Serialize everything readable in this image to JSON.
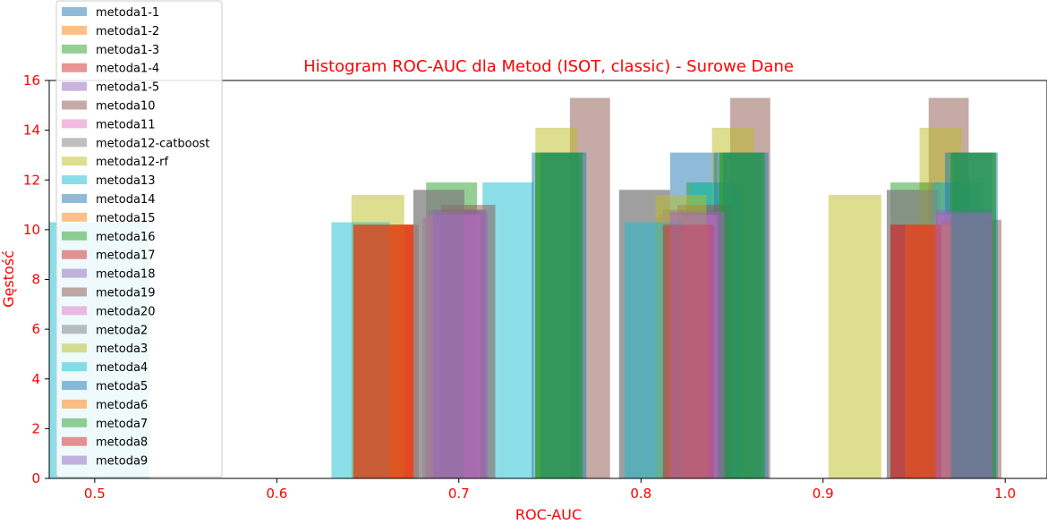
{
  "chart_data": {
    "type": "bar",
    "title": "Histogram ROC-AUC dla Metod (ISOT, classic) - Surowe Dane",
    "xlabel": "ROC-AUC",
    "ylabel": "Gęstość",
    "xlim": [
      0.475,
      1.023
    ],
    "ylim": [
      0,
      16
    ],
    "xticks": [
      "0.5",
      "0.6",
      "0.7",
      "0.8",
      "0.9",
      "1.0"
    ],
    "yticks": [
      "0",
      "2",
      "4",
      "6",
      "8",
      "10",
      "12",
      "14",
      "16"
    ],
    "grid": false,
    "legend_position": "top-left",
    "series": [
      {
        "name": "metoda1-1",
        "color": "#1f77b4",
        "bars": [
          {
            "x0": 0.816,
            "x1": 0.842,
            "h": 13.1
          },
          {
            "x0": 0.953,
            "x1": 0.977,
            "h": 11.9
          }
        ]
      },
      {
        "name": "metoda1-2",
        "color": "#ff7f0e",
        "bars": [
          {
            "x0": 0.642,
            "x1": 0.675,
            "h": 10.2
          },
          {
            "x0": 0.815,
            "x1": 0.838,
            "h": 10.2
          },
          {
            "x0": 0.945,
            "x1": 0.97,
            "h": 10.2
          }
        ]
      },
      {
        "name": "metoda1-3",
        "color": "#2ca02c",
        "bars": [
          {
            "x0": 0.682,
            "x1": 0.71,
            "h": 11.9
          },
          {
            "x0": 0.825,
            "x1": 0.853,
            "h": 11.9
          },
          {
            "x0": 0.937,
            "x1": 0.965,
            "h": 11.9
          }
        ]
      },
      {
        "name": "metoda1-4",
        "color": "#d62728",
        "bars": [
          {
            "x0": 0.642,
            "x1": 0.678,
            "h": 10.2
          },
          {
            "x0": 0.812,
            "x1": 0.84,
            "h": 10.2
          },
          {
            "x0": 0.937,
            "x1": 0.965,
            "h": 10.2
          }
        ]
      },
      {
        "name": "metoda1-5",
        "color": "#9467bd",
        "bars": [
          {
            "x0": 0.683,
            "x1": 0.713,
            "h": 10.8
          },
          {
            "x0": 0.812,
            "x1": 0.842,
            "h": 10.8
          },
          {
            "x0": 0.962,
            "x1": 0.992,
            "h": 10.8
          }
        ]
      },
      {
        "name": "metoda10",
        "color": "#8c564b",
        "bars": [
          {
            "x0": 0.761,
            "x1": 0.783,
            "h": 15.3
          },
          {
            "x0": 0.849,
            "x1": 0.871,
            "h": 15.3
          },
          {
            "x0": 0.958,
            "x1": 0.98,
            "h": 15.3
          }
        ]
      },
      {
        "name": "metoda11",
        "color": "#e377c2",
        "bars": [
          {
            "x0": 0.68,
            "x1": 0.713,
            "h": 10.5
          },
          {
            "x0": 0.808,
            "x1": 0.84,
            "h": 10.5
          },
          {
            "x0": 0.96,
            "x1": 0.993,
            "h": 10.5
          }
        ]
      },
      {
        "name": "metoda12-catboost",
        "color": "#7f7f7f",
        "bars": [
          {
            "x0": 0.675,
            "x1": 0.703,
            "h": 11.6
          },
          {
            "x0": 0.788,
            "x1": 0.816,
            "h": 11.6
          },
          {
            "x0": 0.935,
            "x1": 0.963,
            "h": 11.6
          }
        ]
      },
      {
        "name": "metoda12-rf",
        "color": "#bcbd22",
        "bars": [
          {
            "x0": 0.742,
            "x1": 0.765,
            "h": 14.1
          },
          {
            "x0": 0.839,
            "x1": 0.862,
            "h": 14.1
          },
          {
            "x0": 0.953,
            "x1": 0.976,
            "h": 14.1
          }
        ]
      },
      {
        "name": "metoda13",
        "color": "#17becf",
        "bars": [
          {
            "x0": 0.713,
            "x1": 0.741,
            "h": 11.9
          },
          {
            "x0": 0.827,
            "x1": 0.855,
            "h": 11.9
          },
          {
            "x0": 0.96,
            "x1": 0.988,
            "h": 11.9
          }
        ]
      },
      {
        "name": "metoda14",
        "color": "#1f77b4",
        "bars": [
          {
            "x0": 0.74,
            "x1": 0.766,
            "h": 13.1
          },
          {
            "x0": 0.84,
            "x1": 0.866,
            "h": 13.1
          },
          {
            "x0": 0.967,
            "x1": 0.993,
            "h": 13.1
          }
        ]
      },
      {
        "name": "metoda15",
        "color": "#ff7f0e",
        "bars": [
          {
            "x0": 0.642,
            "x1": 0.675,
            "h": 10.2
          },
          {
            "x0": 0.815,
            "x1": 0.838,
            "h": 10.2
          },
          {
            "x0": 0.945,
            "x1": 0.97,
            "h": 10.2
          }
        ]
      },
      {
        "name": "metoda16",
        "color": "#2ca02c",
        "bars": [
          {
            "x0": 0.742,
            "x1": 0.768,
            "h": 13.1
          },
          {
            "x0": 0.843,
            "x1": 0.868,
            "h": 13.1
          },
          {
            "x0": 0.97,
            "x1": 0.995,
            "h": 13.1
          }
        ]
      },
      {
        "name": "metoda17",
        "color": "#d62728",
        "bars": [
          {
            "x0": 0.642,
            "x1": 0.675,
            "h": 10.2
          },
          {
            "x0": 0.812,
            "x1": 0.84,
            "h": 10.2
          },
          {
            "x0": 0.937,
            "x1": 0.965,
            "h": 10.2
          }
        ]
      },
      {
        "name": "metoda18",
        "color": "#9467bd",
        "bars": [
          {
            "x0": 0.685,
            "x1": 0.715,
            "h": 10.8
          },
          {
            "x0": 0.815,
            "x1": 0.845,
            "h": 10.8
          },
          {
            "x0": 0.962,
            "x1": 0.993,
            "h": 10.8
          }
        ]
      },
      {
        "name": "metoda19",
        "color": "#8c564b",
        "bars": [
          {
            "x0": 0.69,
            "x1": 0.72,
            "h": 11.0
          },
          {
            "x0": 0.82,
            "x1": 0.85,
            "h": 11.0
          },
          {
            "x0": 0.965,
            "x1": 0.998,
            "h": 10.4
          }
        ]
      },
      {
        "name": "metoda20",
        "color": "#e377c2",
        "bars": [
          {
            "x0": 0.682,
            "x1": 0.712,
            "h": 10.6
          },
          {
            "x0": 0.81,
            "x1": 0.842,
            "h": 10.6
          },
          {
            "x0": 0.961,
            "x1": 0.993,
            "h": 10.6
          }
        ]
      },
      {
        "name": "metoda2",
        "color": "#7f7f7f",
        "bars": [
          {
            "x0": 0.675,
            "x1": 0.703,
            "h": 11.6
          },
          {
            "x0": 0.788,
            "x1": 0.816,
            "h": 11.6
          },
          {
            "x0": 0.935,
            "x1": 0.963,
            "h": 11.6
          }
        ]
      },
      {
        "name": "metoda3",
        "color": "#bcbd22",
        "bars": [
          {
            "x0": 0.641,
            "x1": 0.67,
            "h": 11.4
          },
          {
            "x0": 0.808,
            "x1": 0.836,
            "h": 11.4
          },
          {
            "x0": 0.903,
            "x1": 0.932,
            "h": 11.4
          }
        ]
      },
      {
        "name": "metoda4",
        "color": "#17becf",
        "bars": [
          {
            "x0": 0.475,
            "x1": 0.53,
            "h": 10.3
          },
          {
            "x0": 0.63,
            "x1": 0.662,
            "h": 10.3
          },
          {
            "x0": 0.791,
            "x1": 0.823,
            "h": 10.3
          }
        ]
      },
      {
        "name": "metoda5",
        "color": "#1f77b4",
        "bars": [
          {
            "x0": 0.745,
            "x1": 0.77,
            "h": 13.1
          },
          {
            "x0": 0.845,
            "x1": 0.87,
            "h": 13.1
          },
          {
            "x0": 0.971,
            "x1": 0.996,
            "h": 13.1
          }
        ]
      },
      {
        "name": "metoda6",
        "color": "#ff7f0e",
        "bars": [
          {
            "x0": 0.642,
            "x1": 0.675,
            "h": 10.2
          },
          {
            "x0": 0.815,
            "x1": 0.838,
            "h": 10.2
          },
          {
            "x0": 0.945,
            "x1": 0.97,
            "h": 10.2
          }
        ]
      },
      {
        "name": "metoda7",
        "color": "#2ca02c",
        "bars": [
          {
            "x0": 0.742,
            "x1": 0.768,
            "h": 13.1
          },
          {
            "x0": 0.843,
            "x1": 0.868,
            "h": 13.1
          },
          {
            "x0": 0.97,
            "x1": 0.995,
            "h": 13.1
          }
        ]
      },
      {
        "name": "metoda8",
        "color": "#d62728",
        "bars": [
          {
            "x0": 0.642,
            "x1": 0.675,
            "h": 10.2
          },
          {
            "x0": 0.812,
            "x1": 0.84,
            "h": 10.2
          },
          {
            "x0": 0.937,
            "x1": 0.965,
            "h": 10.2
          }
        ]
      },
      {
        "name": "metoda9",
        "color": "#9467bd",
        "bars": [
          {
            "x0": 0.686,
            "x1": 0.716,
            "h": 10.7
          },
          {
            "x0": 0.816,
            "x1": 0.846,
            "h": 10.7
          },
          {
            "x0": 0.962,
            "x1": 0.993,
            "h": 10.7
          }
        ]
      }
    ]
  }
}
